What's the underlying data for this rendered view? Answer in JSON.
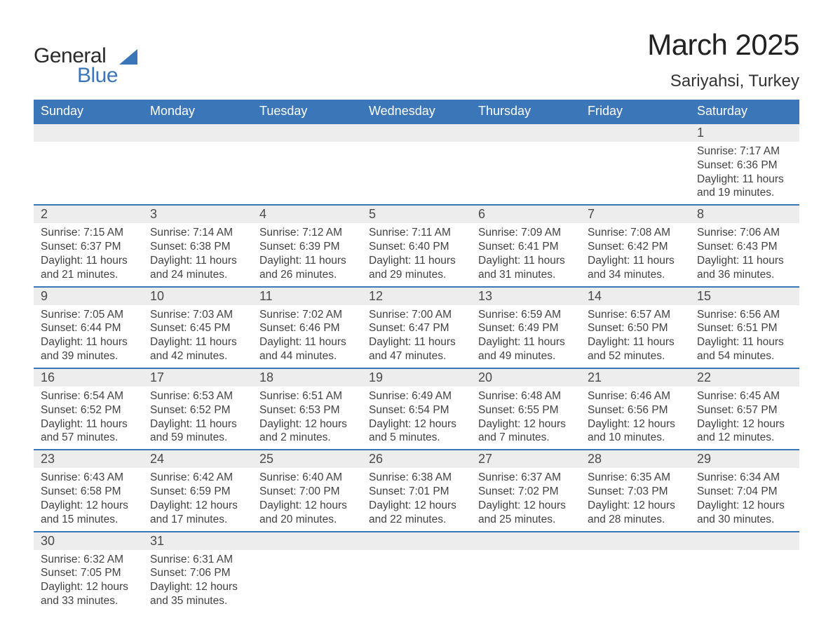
{
  "logo": {
    "word1": "General",
    "word2": "Blue"
  },
  "title": "March 2025",
  "location": "Sariyahsi, Turkey",
  "weekdays": [
    "Sunday",
    "Monday",
    "Tuesday",
    "Wednesday",
    "Thursday",
    "Friday",
    "Saturday"
  ],
  "colors": {
    "header_bg": "#3a76b8",
    "header_fg": "#ffffff",
    "daynum_bg": "#ededed",
    "border": "#3a76b8",
    "text": "#3a3a3a",
    "background": "#ffffff"
  },
  "typography": {
    "title_fontsize": 42,
    "location_fontsize": 24,
    "weekday_fontsize": 18,
    "daynum_fontsize": 18,
    "detail_fontsize": 15.5,
    "font_family": "Arial"
  },
  "table": {
    "columns": 7,
    "row_border_width": 2
  },
  "weeks": [
    [
      null,
      null,
      null,
      null,
      null,
      null,
      {
        "n": "1",
        "sunrise": "7:17 AM",
        "sunset": "6:36 PM",
        "daylight_h": "11",
        "daylight_m": "19"
      }
    ],
    [
      {
        "n": "2",
        "sunrise": "7:15 AM",
        "sunset": "6:37 PM",
        "daylight_h": "11",
        "daylight_m": "21"
      },
      {
        "n": "3",
        "sunrise": "7:14 AM",
        "sunset": "6:38 PM",
        "daylight_h": "11",
        "daylight_m": "24"
      },
      {
        "n": "4",
        "sunrise": "7:12 AM",
        "sunset": "6:39 PM",
        "daylight_h": "11",
        "daylight_m": "26"
      },
      {
        "n": "5",
        "sunrise": "7:11 AM",
        "sunset": "6:40 PM",
        "daylight_h": "11",
        "daylight_m": "29"
      },
      {
        "n": "6",
        "sunrise": "7:09 AM",
        "sunset": "6:41 PM",
        "daylight_h": "11",
        "daylight_m": "31"
      },
      {
        "n": "7",
        "sunrise": "7:08 AM",
        "sunset": "6:42 PM",
        "daylight_h": "11",
        "daylight_m": "34"
      },
      {
        "n": "8",
        "sunrise": "7:06 AM",
        "sunset": "6:43 PM",
        "daylight_h": "11",
        "daylight_m": "36"
      }
    ],
    [
      {
        "n": "9",
        "sunrise": "7:05 AM",
        "sunset": "6:44 PM",
        "daylight_h": "11",
        "daylight_m": "39"
      },
      {
        "n": "10",
        "sunrise": "7:03 AM",
        "sunset": "6:45 PM",
        "daylight_h": "11",
        "daylight_m": "42"
      },
      {
        "n": "11",
        "sunrise": "7:02 AM",
        "sunset": "6:46 PM",
        "daylight_h": "11",
        "daylight_m": "44"
      },
      {
        "n": "12",
        "sunrise": "7:00 AM",
        "sunset": "6:47 PM",
        "daylight_h": "11",
        "daylight_m": "47"
      },
      {
        "n": "13",
        "sunrise": "6:59 AM",
        "sunset": "6:49 PM",
        "daylight_h": "11",
        "daylight_m": "49"
      },
      {
        "n": "14",
        "sunrise": "6:57 AM",
        "sunset": "6:50 PM",
        "daylight_h": "11",
        "daylight_m": "52"
      },
      {
        "n": "15",
        "sunrise": "6:56 AM",
        "sunset": "6:51 PM",
        "daylight_h": "11",
        "daylight_m": "54"
      }
    ],
    [
      {
        "n": "16",
        "sunrise": "6:54 AM",
        "sunset": "6:52 PM",
        "daylight_h": "11",
        "daylight_m": "57"
      },
      {
        "n": "17",
        "sunrise": "6:53 AM",
        "sunset": "6:52 PM",
        "daylight_h": "11",
        "daylight_m": "59"
      },
      {
        "n": "18",
        "sunrise": "6:51 AM",
        "sunset": "6:53 PM",
        "daylight_h": "12",
        "daylight_m": "2"
      },
      {
        "n": "19",
        "sunrise": "6:49 AM",
        "sunset": "6:54 PM",
        "daylight_h": "12",
        "daylight_m": "5"
      },
      {
        "n": "20",
        "sunrise": "6:48 AM",
        "sunset": "6:55 PM",
        "daylight_h": "12",
        "daylight_m": "7"
      },
      {
        "n": "21",
        "sunrise": "6:46 AM",
        "sunset": "6:56 PM",
        "daylight_h": "12",
        "daylight_m": "10"
      },
      {
        "n": "22",
        "sunrise": "6:45 AM",
        "sunset": "6:57 PM",
        "daylight_h": "12",
        "daylight_m": "12"
      }
    ],
    [
      {
        "n": "23",
        "sunrise": "6:43 AM",
        "sunset": "6:58 PM",
        "daylight_h": "12",
        "daylight_m": "15"
      },
      {
        "n": "24",
        "sunrise": "6:42 AM",
        "sunset": "6:59 PM",
        "daylight_h": "12",
        "daylight_m": "17"
      },
      {
        "n": "25",
        "sunrise": "6:40 AM",
        "sunset": "7:00 PM",
        "daylight_h": "12",
        "daylight_m": "20"
      },
      {
        "n": "26",
        "sunrise": "6:38 AM",
        "sunset": "7:01 PM",
        "daylight_h": "12",
        "daylight_m": "22"
      },
      {
        "n": "27",
        "sunrise": "6:37 AM",
        "sunset": "7:02 PM",
        "daylight_h": "12",
        "daylight_m": "25"
      },
      {
        "n": "28",
        "sunrise": "6:35 AM",
        "sunset": "7:03 PM",
        "daylight_h": "12",
        "daylight_m": "28"
      },
      {
        "n": "29",
        "sunrise": "6:34 AM",
        "sunset": "7:04 PM",
        "daylight_h": "12",
        "daylight_m": "30"
      }
    ],
    [
      {
        "n": "30",
        "sunrise": "6:32 AM",
        "sunset": "7:05 PM",
        "daylight_h": "12",
        "daylight_m": "33"
      },
      {
        "n": "31",
        "sunrise": "6:31 AM",
        "sunset": "7:06 PM",
        "daylight_h": "12",
        "daylight_m": "35"
      },
      null,
      null,
      null,
      null,
      null
    ]
  ],
  "labels": {
    "sunrise": "Sunrise:",
    "sunset": "Sunset:",
    "daylight_prefix": "Daylight:",
    "hours_word": "hours",
    "and_word": "and",
    "minutes_word": "minutes."
  }
}
